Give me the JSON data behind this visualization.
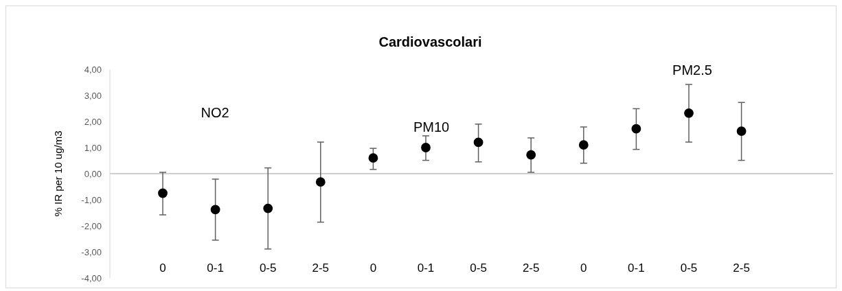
{
  "chart_data": {
    "type": "scatter",
    "title": "Cardiovascolari",
    "ylabel": "% IR per 10 ug/m3",
    "categories": [
      "0",
      "0-1",
      "0-5",
      "2-5",
      "0",
      "0-1",
      "0-5",
      "2-5",
      "0",
      "0-1",
      "0-5",
      "2-5"
    ],
    "series": [
      {
        "color": "#000000",
        "values": [
          -0.75,
          -1.38,
          -1.33,
          -0.32,
          0.6,
          1.0,
          1.2,
          0.72,
          1.1,
          1.72,
          2.32,
          1.63
        ],
        "errors": [
          [
            -1.58,
            0.05
          ],
          [
            -2.55,
            -0.21
          ],
          [
            -2.89,
            0.22
          ],
          [
            -1.86,
            1.21
          ],
          [
            0.16,
            0.97
          ],
          [
            0.51,
            1.45
          ],
          [
            0.45,
            1.9
          ],
          [
            0.05,
            1.37
          ],
          [
            0.4,
            1.79
          ],
          [
            0.93,
            2.49
          ],
          [
            1.21,
            3.42
          ],
          [
            0.51,
            2.73
          ]
        ]
      }
    ],
    "ylim": [
      -4,
      4
    ],
    "yticks": [
      {
        "value": -4,
        "label": "-4,00"
      },
      {
        "value": -3,
        "label": "-3,00"
      },
      {
        "value": -2,
        "label": "-2,00"
      },
      {
        "value": -1,
        "label": "-1,00"
      },
      {
        "value": 0,
        "label": "0,00"
      },
      {
        "value": 1,
        "label": "1,00"
      },
      {
        "value": 2,
        "label": "2,00"
      },
      {
        "value": 3,
        "label": "3,00"
      },
      {
        "value": 4,
        "label": "4,00"
      }
    ],
    "annotations": [
      "NO2",
      "PM10",
      "PM2.5"
    ],
    "marker": "circle"
  }
}
